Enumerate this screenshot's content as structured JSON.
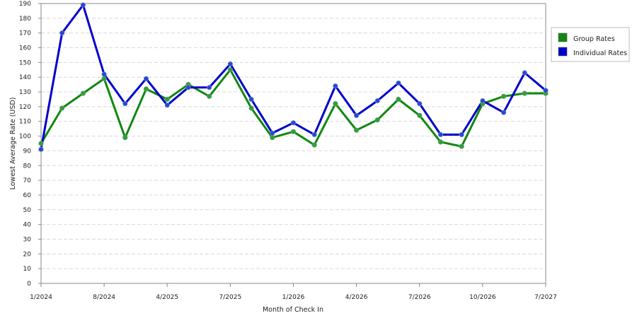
{
  "chart_data": {
    "type": "line",
    "xlabel": "Month of Check In",
    "ylabel": "Lowest Average Rate (USD)",
    "ylim": [
      0,
      190
    ],
    "ytick_step": 10,
    "grid": true,
    "legend_position": "right",
    "x_ticks": [
      "1/2024",
      "8/2024",
      "4/2025",
      "7/2025",
      "1/2026",
      "4/2026",
      "7/2026",
      "10/2026",
      "7/2027"
    ],
    "x_tick_positions": [
      0,
      3,
      6,
      9,
      12,
      15,
      18,
      21,
      24
    ],
    "series": [
      {
        "name": "Group Rates",
        "color": "#118811",
        "marker_color": "#22aa22",
        "values": [
          95,
          119,
          129,
          139,
          99,
          132,
          125,
          135,
          127,
          145,
          119,
          99,
          103,
          94,
          122,
          104,
          111,
          125,
          114,
          96,
          93,
          122,
          127,
          129,
          129
        ]
      },
      {
        "name": "Individual Rates",
        "color": "#0000cc",
        "marker_color": "#2244ee",
        "values": [
          91,
          170,
          189,
          142,
          122,
          139,
          121,
          133,
          133,
          149,
          125,
          102,
          109,
          101,
          134,
          114,
          124,
          136,
          122,
          101,
          101,
          124,
          116,
          143,
          131
        ]
      }
    ]
  }
}
